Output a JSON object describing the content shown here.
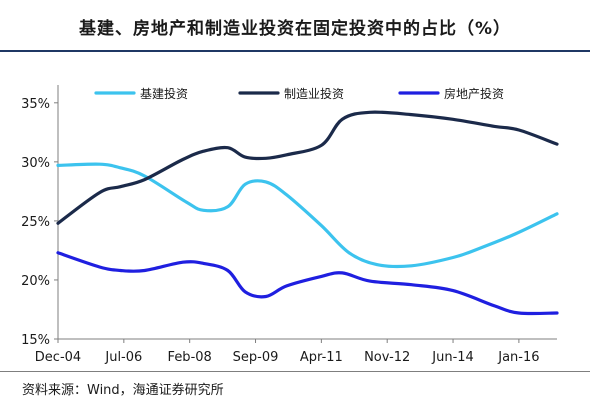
{
  "title": "基建、房地产和制造业投资在固定投资中的占比（%）",
  "source": "资料来源：Wind，海通证券研究所",
  "chart_data": {
    "type": "line",
    "x_tick_labels": [
      "Dec-04",
      "Jul-06",
      "Feb-08",
      "Sep-09",
      "Apr-11",
      "Nov-12",
      "Jun-14",
      "Jan-16"
    ],
    "y_tick_labels": [
      "15%",
      "20%",
      "25%",
      "30%",
      "35%"
    ],
    "ylim": [
      15,
      36
    ],
    "x_range": [
      "2004-12",
      "2016-12"
    ],
    "legend_position": "top",
    "series": [
      {
        "name": "基建投资",
        "color": "#3cc3ee",
        "x": [
          "2004-12",
          "2005-12",
          "2006-06",
          "2007-01",
          "2008-01",
          "2008-06",
          "2009-01",
          "2009-06",
          "2009-12",
          "2010-06",
          "2011-04",
          "2011-12",
          "2012-08",
          "2013-06",
          "2014-06",
          "2015-01",
          "2015-12",
          "2016-12"
        ],
        "values": [
          29.7,
          29.8,
          29.5,
          28.8,
          26.6,
          25.9,
          26.2,
          28.1,
          28.3,
          27.2,
          24.6,
          22.3,
          21.3,
          21.2,
          21.9,
          22.6,
          23.9,
          25.6
        ]
      },
      {
        "name": "制造业投资",
        "color": "#1b2a4a",
        "x": [
          "2004-12",
          "2005-12",
          "2006-06",
          "2007-01",
          "2007-12",
          "2008-06",
          "2009-01",
          "2009-06",
          "2009-12",
          "2010-06",
          "2011-04",
          "2011-10",
          "2012-06",
          "2013-06",
          "2014-06",
          "2015-06",
          "2016-01",
          "2016-12"
        ],
        "values": [
          24.8,
          27.4,
          27.9,
          28.5,
          30.2,
          30.9,
          31.2,
          30.4,
          30.3,
          30.6,
          31.4,
          33.6,
          34.2,
          34.0,
          33.6,
          33.0,
          32.7,
          31.5
        ]
      },
      {
        "name": "房地产投资",
        "color": "#1f1fe0",
        "x": [
          "2004-12",
          "2005-12",
          "2006-06",
          "2007-01",
          "2007-12",
          "2008-06",
          "2009-01",
          "2009-06",
          "2009-12",
          "2010-06",
          "2011-04",
          "2011-10",
          "2012-06",
          "2013-06",
          "2014-06",
          "2015-06",
          "2016-01",
          "2016-12"
        ],
        "values": [
          22.3,
          21.1,
          20.8,
          20.8,
          21.5,
          21.4,
          20.8,
          19.0,
          18.6,
          19.5,
          20.3,
          20.6,
          19.9,
          19.6,
          19.1,
          17.8,
          17.2,
          17.2
        ]
      }
    ]
  }
}
